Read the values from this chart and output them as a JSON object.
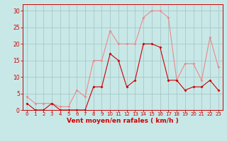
{
  "hours": [
    0,
    1,
    2,
    3,
    4,
    5,
    6,
    7,
    8,
    9,
    10,
    11,
    12,
    13,
    14,
    15,
    16,
    17,
    18,
    19,
    20,
    21,
    22,
    23
  ],
  "vent_moyen": [
    2,
    0,
    0,
    2,
    0,
    0,
    0,
    0,
    7,
    7,
    17,
    15,
    7,
    9,
    20,
    20,
    19,
    9,
    9,
    6,
    7,
    7,
    9,
    6
  ],
  "rafales": [
    4,
    2,
    2,
    2,
    1,
    1,
    6,
    4,
    15,
    15,
    24,
    20,
    20,
    20,
    28,
    30,
    30,
    28,
    9,
    14,
    14,
    9,
    22,
    13
  ],
  "bg_color": "#c8e8e8",
  "grid_color": "#a8c8c8",
  "dark_red": "#cc0000",
  "light_red": "#ee8888",
  "axis_color": "#cc0000",
  "xlabel": "Vent moyen/en rafales ( km/h )",
  "ylim_min": 0,
  "ylim_max": 32,
  "yticks": [
    0,
    5,
    10,
    15,
    20,
    25,
    30
  ],
  "arrow_hours_left": [
    0
  ],
  "arrow_hours_right": [
    8,
    9,
    10,
    11,
    12,
    13,
    14,
    15,
    16,
    17,
    18,
    19,
    20,
    21,
    22,
    23
  ],
  "arrow_char_left": "↙",
  "arrow_char_right": "←"
}
